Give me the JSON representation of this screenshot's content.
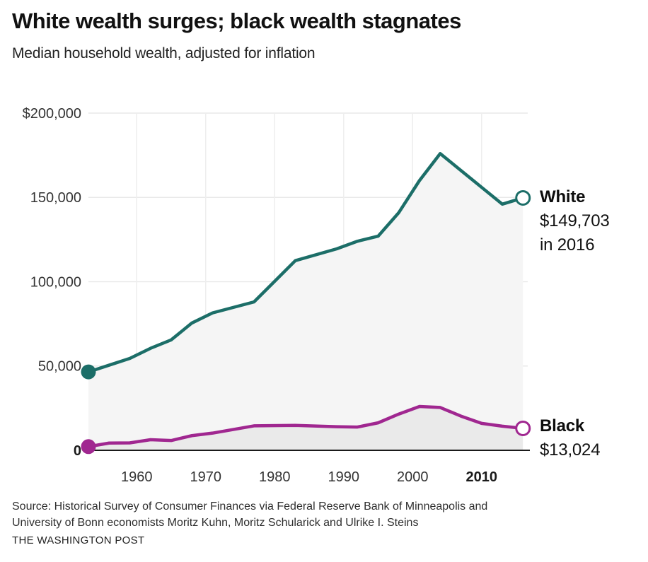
{
  "header": {
    "title": "White wealth surges; black wealth stagnates",
    "subtitle": "Median household wealth, adjusted for inflation"
  },
  "chart_data": {
    "type": "line",
    "title": "White wealth surges; black wealth stagnates",
    "subtitle": "Median household wealth, adjusted for inflation",
    "xlabel": "",
    "ylabel": "Median household wealth (inflation-adjusted dollars)",
    "xlim": [
      1953,
      2016
    ],
    "ylim": [
      0,
      200000
    ],
    "grid": true,
    "x": [
      1953,
      1956,
      1959,
      1962,
      1965,
      1968,
      1971,
      1977,
      1983,
      1989,
      1992,
      1995,
      1998,
      2001,
      2004,
      2007,
      2010,
      2013,
      2016
    ],
    "series": [
      {
        "name": "White",
        "color": "#1c6e68",
        "area_color": "#f5f5f5",
        "end_label": "White $149,703 in 2016",
        "end_value": 149703,
        "values": [
          46500,
          50500,
          54500,
          60500,
          65500,
          75500,
          81500,
          88000,
          112500,
          119500,
          124000,
          127000,
          141000,
          160000,
          176000,
          166000,
          156000,
          146000,
          149703
        ]
      },
      {
        "name": "Black",
        "color": "#a02790",
        "area_color": "rgba(0,0,0,0.045)",
        "end_label": "Black $13,024",
        "end_value": 13024,
        "values": [
          2200,
          4300,
          4400,
          6300,
          5800,
          8700,
          10200,
          14500,
          14800,
          14000,
          13800,
          16300,
          21500,
          26000,
          25400,
          20300,
          16000,
          14300,
          13024
        ]
      }
    ],
    "yticks": [
      {
        "value": 200000,
        "label": "$200,000"
      },
      {
        "value": 150000,
        "label": "150,000"
      },
      {
        "value": 100000,
        "label": "100,000"
      },
      {
        "value": 50000,
        "label": "50,000"
      },
      {
        "value": 0,
        "label": "0"
      }
    ],
    "xticks": [
      {
        "value": 1960,
        "label": "1960"
      },
      {
        "value": 1970,
        "label": "1970"
      },
      {
        "value": 1980,
        "label": "1980"
      },
      {
        "value": 1990,
        "label": "1990"
      },
      {
        "value": 2000,
        "label": "2000"
      },
      {
        "value": 2010,
        "label": "2010"
      }
    ],
    "annotations": [
      {
        "series": "White",
        "lines": [
          "White",
          "$149,703",
          "in 2016"
        ]
      },
      {
        "series": "Black",
        "lines": [
          "Black",
          "$13,024"
        ]
      }
    ]
  },
  "footer": {
    "source_line1": "Source: Historical Survey of Consumer Finances via Federal Reserve Bank of Minneapolis and",
    "source_line2": "University of Bonn economists Moritz Kuhn, Moritz Schularick and Ulrike I. Steins",
    "credit": "THE WASHINGTON POST"
  },
  "colors": {
    "white_series": "#1c6e68",
    "black_series": "#a02790",
    "axis_line": "#1a1a1a",
    "gridline": "#e9e9e9",
    "background": "#ffffff"
  }
}
